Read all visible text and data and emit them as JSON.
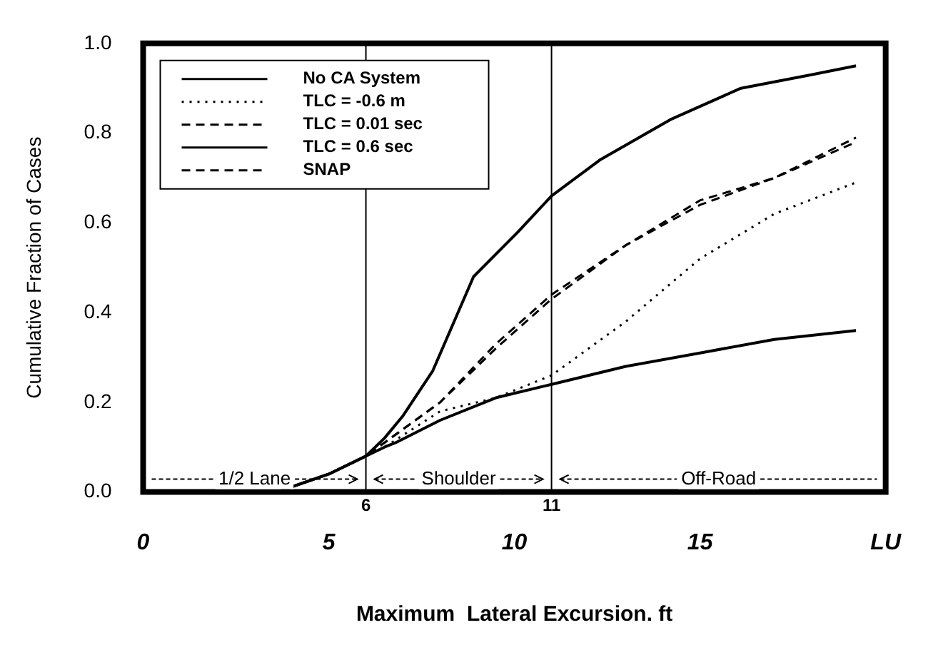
{
  "chart_data": {
    "type": "line",
    "xlabel": "Maximum  Lateral Excursion. ft",
    "ylabel": "Cumulative Fraction of Cases",
    "xlim": [
      0,
      20
    ],
    "xticks": [
      0,
      5,
      10,
      15,
      {
        "value": 20,
        "label": "LU"
      }
    ],
    "ylim": [
      0,
      1
    ],
    "yticks": [
      {
        "value": 0,
        "label": "0.0"
      },
      0.2,
      0.4,
      0.6,
      0.8,
      {
        "value": 1,
        "label": "1.0"
      }
    ],
    "grid": false,
    "legend": "top left",
    "marker": "none",
    "ref_lines": [
      {
        "axis": "x",
        "value": 6,
        "label": "6",
        "color": "#000000"
      },
      {
        "axis": "x",
        "value": 11,
        "label": "11",
        "color": "#000000"
      }
    ],
    "annotations": [
      "1/2 Lane",
      "Shoulder",
      "Off-Road"
    ],
    "series": [
      {
        "name": "No CA System",
        "color": "#000000",
        "line_style": "solid",
        "x": [
          3.6,
          5,
          6,
          6.5,
          6.8,
          8,
          9.5,
          11,
          13,
          15,
          17,
          19.2
        ],
        "values": [
          0,
          0.04,
          0.08,
          0.1,
          0.11,
          0.16,
          0.21,
          0.24,
          0.28,
          0.31,
          0.34,
          0.36
        ]
      },
      {
        "name": "TLC = -0.6 m",
        "color": "#000000",
        "line_style": "dotted",
        "x": [
          3.6,
          5,
          6,
          6.5,
          8,
          9.5,
          11,
          13,
          15,
          17,
          19.2
        ],
        "values": [
          0,
          0.04,
          0.08,
          0.1,
          0.18,
          0.21,
          0.26,
          0.38,
          0.52,
          0.62,
          0.69
        ]
      },
      {
        "name": "TLC = 0.01 sec",
        "color": "#000000",
        "line_style": "dashed",
        "x": [
          3.6,
          5,
          6,
          6.5,
          8,
          9.5,
          11,
          13,
          15,
          17,
          19.2
        ],
        "values": [
          0,
          0.04,
          0.08,
          0.11,
          0.2,
          0.32,
          0.43,
          0.55,
          0.64,
          0.7,
          0.78
        ]
      },
      {
        "name": "TLC = 0.6 sec",
        "color": "#000000",
        "line_style": "solid",
        "x": [
          3.6,
          5,
          6,
          6.5,
          7,
          7.8,
          8.9,
          10.1,
          11,
          12.3,
          14.2,
          16.1,
          18,
          19.2
        ],
        "values": [
          0,
          0.04,
          0.08,
          0.12,
          0.17,
          0.27,
          0.48,
          0.58,
          0.66,
          0.74,
          0.83,
          0.9,
          0.93,
          0.95
        ]
      },
      {
        "name": "SNAP",
        "color": "#000000",
        "line_style": "dashed",
        "x": [
          3.6,
          5,
          6,
          6.5,
          8,
          9.5,
          11,
          13,
          15,
          17,
          19.2
        ],
        "values": [
          0,
          0.04,
          0.08,
          0.11,
          0.2,
          0.33,
          0.44,
          0.55,
          0.65,
          0.7,
          0.79
        ]
      }
    ]
  }
}
